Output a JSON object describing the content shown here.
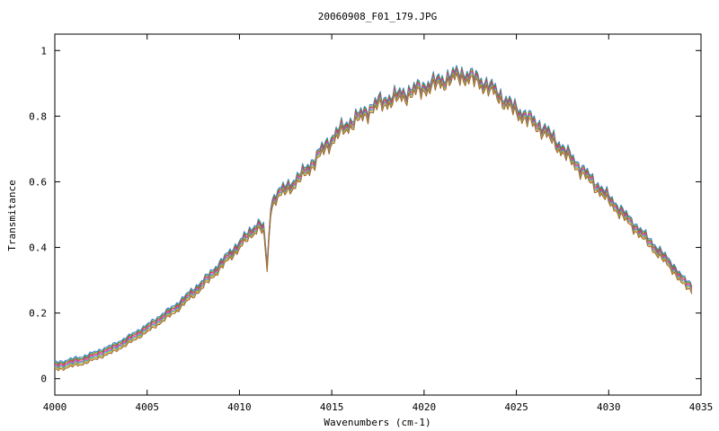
{
  "chart_data": {
    "type": "line",
    "title": "20060908_F01_179.JPG",
    "xlabel": "Wavenumbers (cm-1)",
    "ylabel": "Transmitance",
    "xlim": [
      4000,
      4035
    ],
    "ylim": [
      -0.05,
      1.05
    ],
    "x_ticks": [
      4000,
      4005,
      4010,
      4015,
      4020,
      4025,
      4030,
      4035
    ],
    "y_ticks": [
      0,
      0.2,
      0.4,
      0.6,
      0.8,
      1
    ],
    "x_tick_labels": [
      "4000",
      "4005",
      "4010",
      "4015",
      "4020",
      "4025",
      "4030",
      "4035"
    ],
    "y_tick_labels": [
      "0",
      "0.2",
      "0.4",
      "0.6",
      "0.8",
      "1"
    ],
    "grid": false,
    "legend": "none",
    "series_offsets": [
      0.0,
      0.004,
      0.008,
      0.012,
      0.016,
      0.02,
      0.024
    ],
    "colors": [
      "#4477dd",
      "#33aa33",
      "#dd3333",
      "#cc44cc",
      "#22aaaa",
      "#ddaa22",
      "#996633"
    ],
    "x": [
      4000.0,
      4000.5,
      4001.0,
      4001.5,
      4002.0,
      4002.5,
      4003.0,
      4003.5,
      4004.0,
      4004.5,
      4005.0,
      4005.5,
      4006.0,
      4006.5,
      4007.0,
      4007.5,
      4008.0,
      4008.5,
      4009.0,
      4009.5,
      4010.0,
      4010.5,
      4011.0,
      4011.3,
      4011.5,
      4011.7,
      4012.0,
      4012.5,
      4013.0,
      4013.5,
      4014.0,
      4014.5,
      4015.0,
      4015.5,
      4016.0,
      4016.5,
      4017.0,
      4017.5,
      4018.0,
      4018.5,
      4019.0,
      4019.5,
      4020.0,
      4020.5,
      4021.0,
      4021.5,
      4022.0,
      4022.5,
      4023.0,
      4023.5,
      4024.0,
      4024.5,
      4025.0,
      4025.5,
      4026.0,
      4026.5,
      4027.0,
      4027.5,
      4028.0,
      4028.5,
      4029.0,
      4029.5,
      4030.0,
      4030.5,
      4031.0,
      4031.5,
      4032.0,
      4032.5,
      4033.0,
      4033.5,
      4034.0,
      4034.5
    ],
    "y": [
      0.05,
      0.055,
      0.062,
      0.068,
      0.078,
      0.09,
      0.1,
      0.115,
      0.13,
      0.148,
      0.165,
      0.185,
      0.205,
      0.225,
      0.25,
      0.275,
      0.3,
      0.33,
      0.36,
      0.39,
      0.42,
      0.45,
      0.48,
      0.47,
      0.35,
      0.54,
      0.57,
      0.59,
      0.61,
      0.64,
      0.67,
      0.71,
      0.74,
      0.77,
      0.79,
      0.81,
      0.83,
      0.85,
      0.86,
      0.87,
      0.88,
      0.89,
      0.9,
      0.91,
      0.92,
      0.93,
      0.94,
      0.93,
      0.92,
      0.9,
      0.88,
      0.85,
      0.83,
      0.81,
      0.79,
      0.77,
      0.74,
      0.71,
      0.68,
      0.65,
      0.62,
      0.59,
      0.56,
      0.53,
      0.5,
      0.47,
      0.44,
      0.41,
      0.38,
      0.35,
      0.31,
      0.29
    ]
  }
}
